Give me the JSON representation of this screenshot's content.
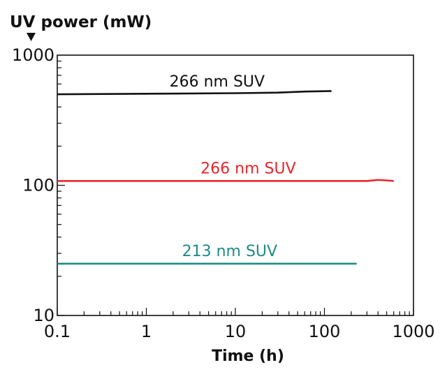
{
  "chart_data": {
    "type": "line",
    "title": "",
    "ylabel": "UV power (mW)",
    "xlabel": "Time (h)",
    "x_scale": "log",
    "y_scale": "log",
    "xlim": [
      0.1,
      1000
    ],
    "ylim": [
      10,
      1000
    ],
    "x_ticks": [
      "0.1",
      "1",
      "10",
      "100",
      "1000"
    ],
    "y_ticks": [
      "10",
      "100",
      "1000"
    ],
    "grid": false,
    "series": [
      {
        "name": "266 nm SUV",
        "color": "#111111",
        "points": [
          [
            0.1,
            500
          ],
          [
            1,
            505
          ],
          [
            10,
            510
          ],
          [
            30,
            515
          ],
          [
            60,
            525
          ],
          [
            120,
            530
          ]
        ]
      },
      {
        "name": "266 nm SUV",
        "color": "#e8262b",
        "points": [
          [
            0.1,
            108
          ],
          [
            10,
            108
          ],
          [
            100,
            108
          ],
          [
            300,
            108
          ],
          [
            400,
            110
          ],
          [
            500,
            109
          ],
          [
            600,
            108
          ]
        ]
      },
      {
        "name": "213 nm SUV",
        "color": "#1f8a8a",
        "points": [
          [
            0.1,
            25
          ],
          [
            10,
            25
          ],
          [
            100,
            25
          ],
          [
            230,
            25
          ]
        ]
      }
    ]
  }
}
